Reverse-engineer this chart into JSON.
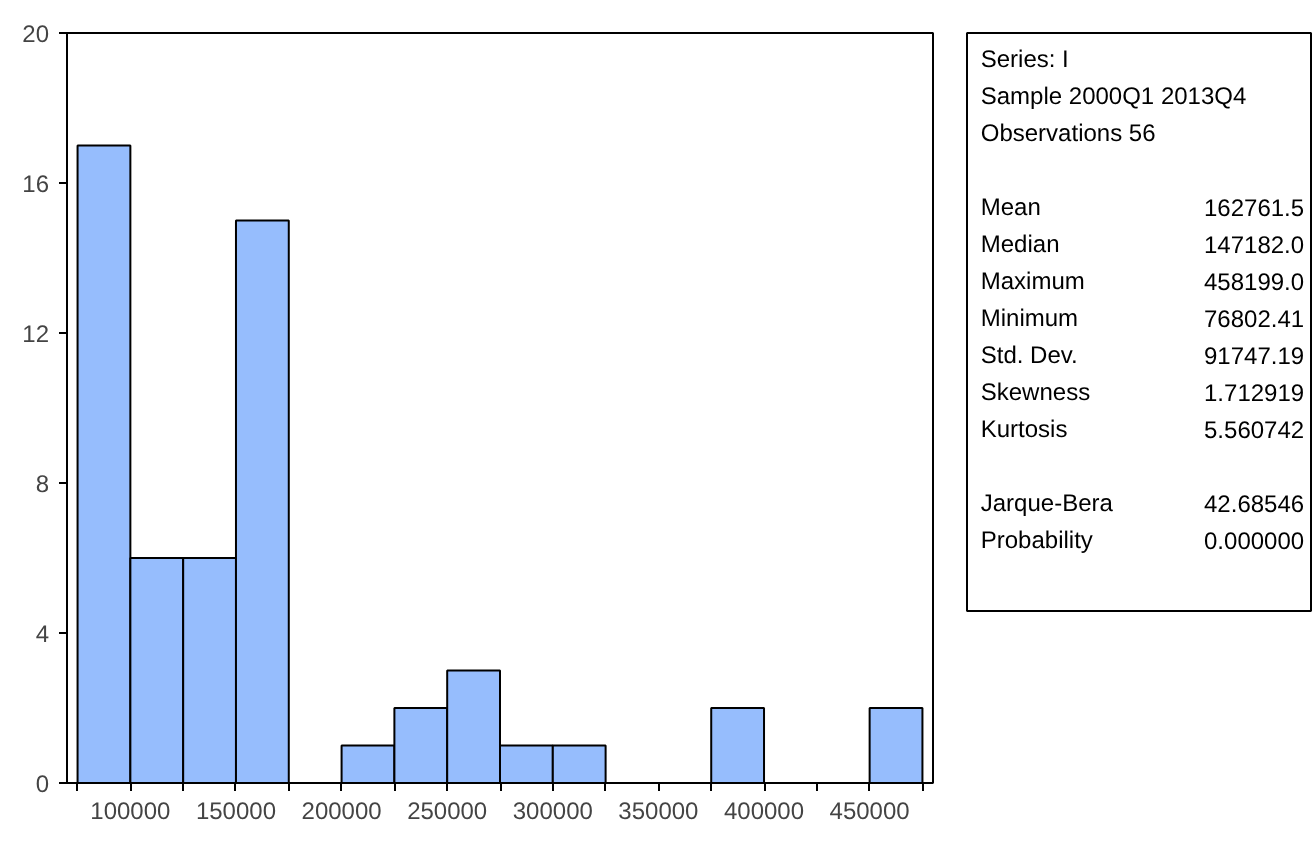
{
  "chart_data": [
    {
      "type": "histogram",
      "bins": [
        75000,
        100000,
        125000,
        150000,
        175000,
        200000,
        225000,
        250000,
        275000,
        300000,
        325000,
        350000,
        375000,
        400000,
        425000,
        450000,
        475000
      ],
      "values": [
        17,
        6,
        6,
        15,
        0,
        1,
        2,
        3,
        1,
        1,
        0,
        0,
        2,
        0,
        0,
        2
      ],
      "color": "#96bdfd",
      "xlim": [
        70000,
        480000
      ],
      "ylim": [
        0,
        20
      ],
      "xticks": [
        {
          "value": 75000,
          "label": null
        },
        100000,
        {
          "value": 125000,
          "label": null
        },
        150000,
        {
          "value": 175000,
          "label": null
        },
        200000,
        {
          "value": 225000,
          "label": null
        },
        250000,
        {
          "value": 275000,
          "label": null
        },
        300000,
        {
          "value": 325000,
          "label": null
        },
        350000,
        {
          "value": 375000,
          "label": null
        },
        400000,
        {
          "value": 425000,
          "label": null
        },
        450000,
        {
          "value": 475000,
          "label": null
        }
      ],
      "yticks": [
        0,
        4,
        8,
        12,
        16,
        20
      ],
      "grid": false
    },
    {
      "type": "other",
      "annotations": [
        "Series: I",
        "Sample 2000Q1 2013Q4",
        "Observations 56",
        "Mean",
        "162761.5",
        "Median",
        "147182.0",
        "Maximum",
        "458199.0",
        "Minimum",
        "76802.41",
        "Std. Dev.",
        "91747.19",
        "Skewness",
        "1.712919",
        "Kurtosis",
        "5.560742",
        "Jarque-Bera",
        "42.68546",
        "Probability",
        "0.000000"
      ]
    }
  ]
}
